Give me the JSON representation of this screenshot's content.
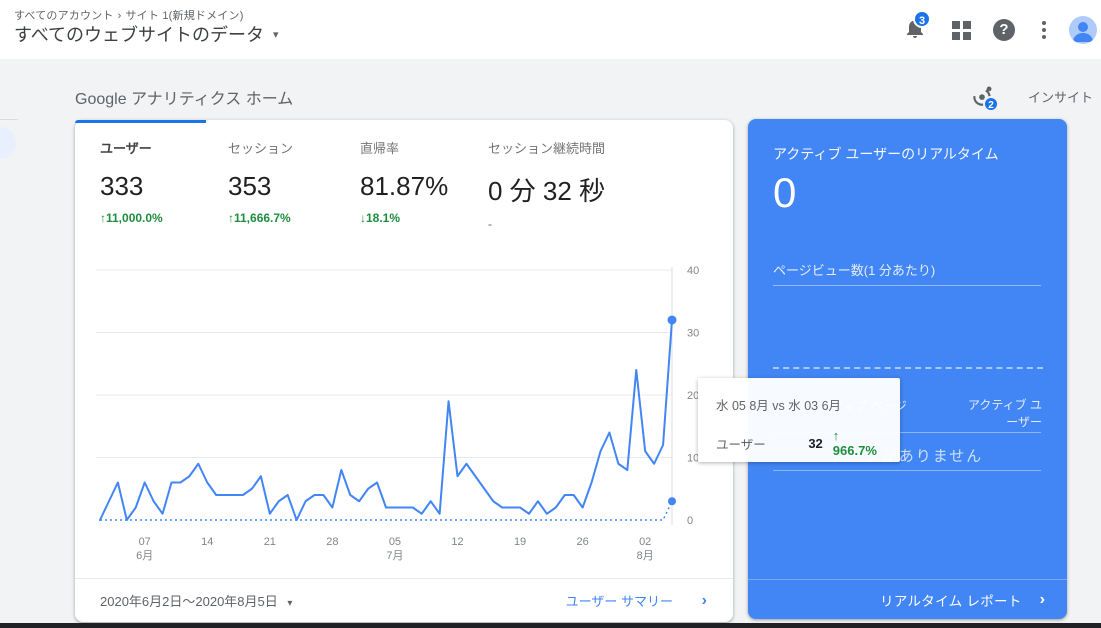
{
  "colors": {
    "accent_blue": "#4285f4",
    "active_tab_blue": "#1a73e8",
    "badge_blue": "#1a73e8",
    "positive_green": "#1e8e3e",
    "panel_blue": "#4285f4",
    "icon_gray": "#5f6368"
  },
  "glyphs": {
    "caret_down": "▾",
    "chevron_right": "›",
    "breadcrumb_sep": "›",
    "help": "?"
  },
  "header": {
    "breadcrumb_account": "すべてのアカウント",
    "breadcrumb_property": "サイト 1(新規ドメイン)",
    "title": "すべてのウェブサイトのデータ",
    "notification_count": "3",
    "icons": [
      "notifications-bell-icon",
      "apps-grid-icon",
      "help-icon",
      "more-vertical-icon",
      "user-avatar"
    ]
  },
  "main": {
    "heading": "Google アナリティクス ホーム",
    "insights_label": "インサイト",
    "insights_badge": "2"
  },
  "metrics": [
    {
      "label": "ユーザー",
      "value": "333",
      "change_display": "↑11,000.0%",
      "direction": "up",
      "active": true
    },
    {
      "label": "セッション",
      "value": "353",
      "change_display": "↑11,666.7%",
      "direction": "up",
      "active": false
    },
    {
      "label": "直帰率",
      "value": "81.87%",
      "change_display": "↓18.1%",
      "direction": "down",
      "active": false
    },
    {
      "label": "セッション継続時間",
      "value": "0 分 32 秒",
      "change_display": "-",
      "direction": "none",
      "active": false
    }
  ],
  "chart_data": {
    "type": "line",
    "title": "ユーザー",
    "x_start": "2020-06-02",
    "x_end": "2020-08-05",
    "ylim": [
      0,
      40
    ],
    "yticks": [
      0,
      10,
      20,
      30,
      40
    ],
    "grid": true,
    "legend": "none",
    "line_color": "#4285f4",
    "series": [
      {
        "name": "ユーザー(2020年6月2日〜2020年8月5日)",
        "style": "solid",
        "values": [
          0,
          3,
          6,
          0,
          2,
          6,
          3,
          1,
          6,
          6,
          7,
          9,
          6,
          4,
          4,
          4,
          4,
          5,
          7,
          1,
          3,
          4,
          0,
          3,
          4,
          4,
          2,
          8,
          4,
          3,
          5,
          6,
          2,
          2,
          2,
          2,
          1,
          3,
          1,
          19,
          7,
          9,
          7,
          5,
          3,
          2,
          2,
          2,
          1,
          3,
          1,
          2,
          4,
          4,
          2,
          6,
          11,
          14,
          9,
          8,
          24,
          11,
          9,
          12,
          32
        ]
      },
      {
        "name": "比較期間",
        "style": "dashed",
        "values": [
          0,
          0,
          0,
          0,
          0,
          0,
          0,
          0,
          0,
          0,
          0,
          0,
          0,
          0,
          0,
          0,
          0,
          0,
          0,
          0,
          0,
          0,
          0,
          0,
          0,
          0,
          0,
          0,
          0,
          0,
          0,
          0,
          0,
          0,
          0,
          0,
          0,
          0,
          0,
          0,
          0,
          0,
          0,
          0,
          0,
          0,
          0,
          0,
          0,
          0,
          0,
          0,
          0,
          0,
          0,
          0,
          0,
          0,
          0,
          0,
          0,
          0,
          0,
          0,
          3
        ]
      }
    ],
    "xticks": [
      {
        "index": 5,
        "label": "07",
        "sub": "6月"
      },
      {
        "index": 12,
        "label": "14",
        "sub": ""
      },
      {
        "index": 19,
        "label": "21",
        "sub": ""
      },
      {
        "index": 26,
        "label": "28",
        "sub": ""
      },
      {
        "index": 33,
        "label": "05",
        "sub": "7月"
      },
      {
        "index": 40,
        "label": "12",
        "sub": ""
      },
      {
        "index": 47,
        "label": "19",
        "sub": ""
      },
      {
        "index": 54,
        "label": "26",
        "sub": ""
      },
      {
        "index": 61,
        "label": "02",
        "sub": "8月"
      }
    ]
  },
  "tooltip": {
    "title": "水 05 8月 vs 水 03 6月",
    "metric": "ユーザー",
    "value": "32",
    "change_display": "↑ 966.7%"
  },
  "card_footer": {
    "date_range": "2020年6月2日〜2020年8月5日",
    "link": "ユーザー サマリー"
  },
  "realtime": {
    "title": "アクティブ ユーザーのリアルタイム",
    "value": "0",
    "pageviews_label": "ページビュー数(1 分あたり)",
    "top_pages_label": "上位のアクティブ ページ",
    "active_users_label": "アクティブ ユーザー",
    "empty_message": "データがありません",
    "footer_link": "リアルタイム レポート"
  }
}
